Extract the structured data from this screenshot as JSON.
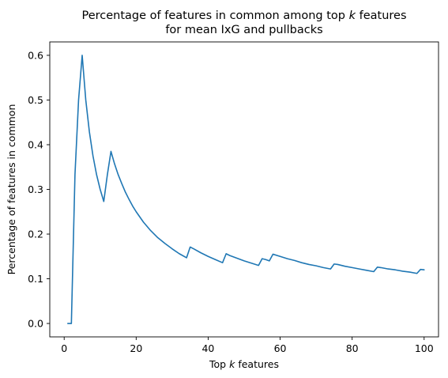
{
  "chart_data": {
    "type": "line",
    "title_line1": "Percentage of features in common among top ",
    "title_k": "k",
    "title_line1_end": " features",
    "title_line2": "for mean IxG and pullbacks",
    "xlabel_pre": "Top ",
    "xlabel_k": "k",
    "xlabel_post": " features",
    "ylabel": "Percentage of features in common",
    "xlim": [
      -4,
      104
    ],
    "ylim": [
      -0.03,
      0.63
    ],
    "xticks": [
      0,
      20,
      40,
      60,
      80,
      100
    ],
    "yticks": [
      0.0,
      0.1,
      0.2,
      0.3,
      0.4,
      0.5,
      0.6
    ],
    "ytick_labels": [
      "0.0",
      "0.1",
      "0.2",
      "0.3",
      "0.4",
      "0.5",
      "0.6"
    ],
    "grid": false,
    "series": [
      {
        "color": "#1f77b4",
        "x": [
          1,
          2,
          3,
          4,
          5,
          6,
          7,
          8,
          9,
          10,
          11,
          12,
          13,
          14,
          15,
          16,
          17,
          18,
          19,
          20,
          22,
          24,
          26,
          28,
          30,
          32,
          34,
          35,
          36,
          38,
          40,
          42,
          44,
          45,
          46,
          48,
          50,
          52,
          54,
          55,
          56,
          57,
          58,
          60,
          62,
          64,
          66,
          68,
          70,
          72,
          74,
          75,
          76,
          78,
          80,
          82,
          84,
          86,
          87,
          88,
          90,
          92,
          94,
          96,
          98,
          99,
          100
        ],
        "y": [
          0.0,
          0.0,
          0.333,
          0.5,
          0.6,
          0.5,
          0.429,
          0.375,
          0.333,
          0.3,
          0.273,
          0.333,
          0.385,
          0.357,
          0.333,
          0.313,
          0.294,
          0.278,
          0.263,
          0.25,
          0.227,
          0.208,
          0.192,
          0.179,
          0.167,
          0.156,
          0.147,
          0.171,
          0.167,
          0.158,
          0.15,
          0.143,
          0.136,
          0.156,
          0.152,
          0.146,
          0.14,
          0.135,
          0.13,
          0.145,
          0.143,
          0.14,
          0.155,
          0.15,
          0.145,
          0.141,
          0.136,
          0.132,
          0.129,
          0.125,
          0.122,
          0.133,
          0.132,
          0.128,
          0.125,
          0.122,
          0.119,
          0.116,
          0.126,
          0.125,
          0.122,
          0.12,
          0.117,
          0.115,
          0.112,
          0.121,
          0.12
        ]
      }
    ]
  }
}
